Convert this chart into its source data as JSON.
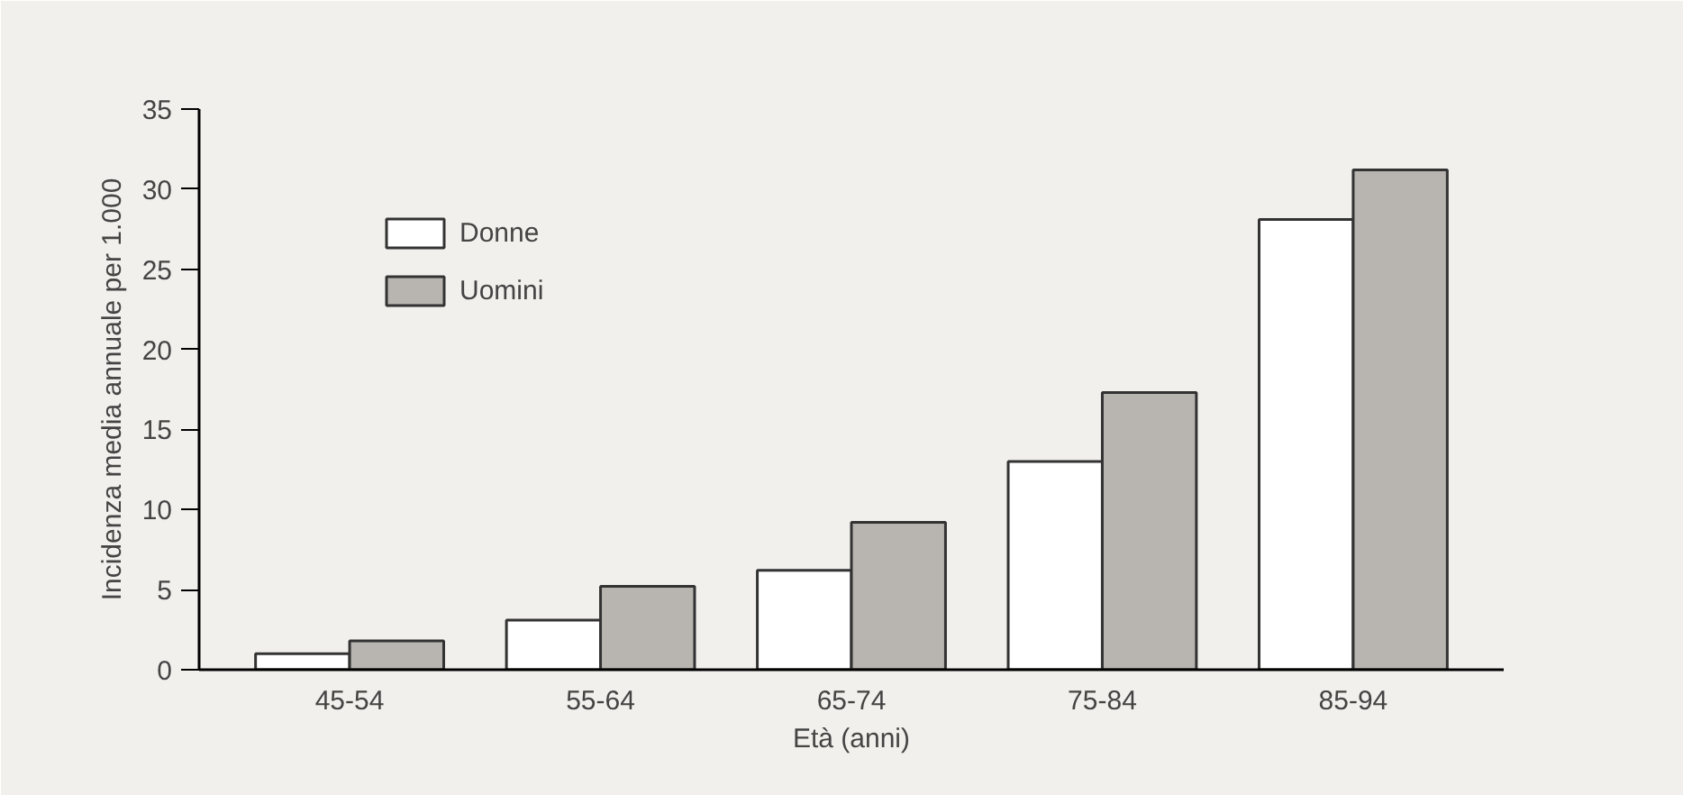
{
  "chart_data": {
    "type": "bar",
    "xlabel": "Età (anni)",
    "ylabel": "Incidenza media annuale per 1.000",
    "categories": [
      "45-54",
      "55-64",
      "65-74",
      "75-84",
      "85-94"
    ],
    "series": [
      {
        "name": "Donne",
        "color": "#ffffff",
        "values": [
          1.0,
          3.1,
          6.2,
          13.0,
          28.1
        ]
      },
      {
        "name": "Uomini",
        "color": "#b8b5b0",
        "values": [
          1.8,
          5.2,
          9.2,
          17.3,
          31.2
        ]
      }
    ],
    "ylim": [
      0,
      35
    ],
    "yticks": [
      0,
      5,
      10,
      15,
      20,
      25,
      30,
      35
    ],
    "grid": false,
    "legend": "top left"
  }
}
